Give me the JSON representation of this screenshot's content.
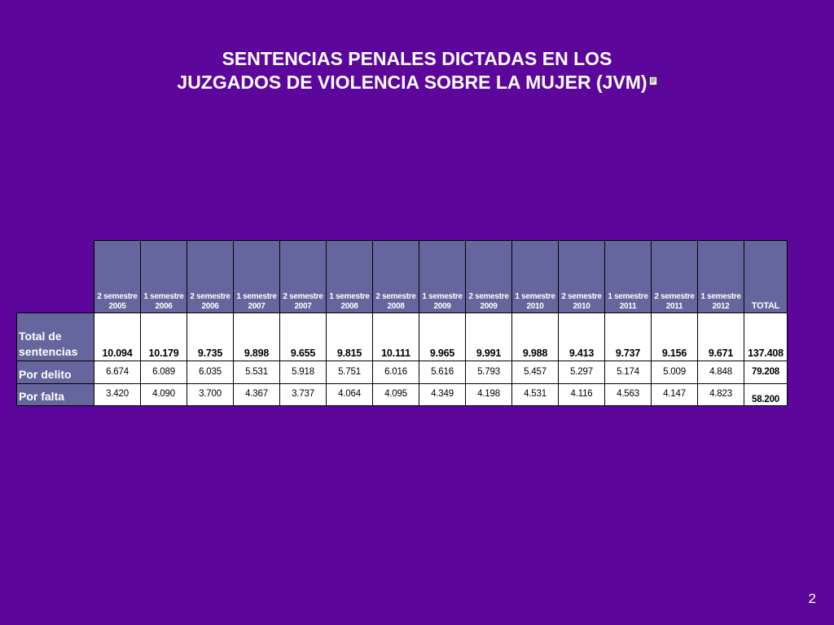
{
  "slide": {
    "title_line1": "SENTENCIAS PENALES DICTADAS EN LOS",
    "title_line2": "JUZGADOS DE VIOLENCIA SOBRE LA MUJER (JVM)",
    "page_number": "2",
    "background_color": "#5c069c",
    "header_color": "#66669e"
  },
  "chart_data": {
    "type": "table",
    "columns": [
      {
        "period": "2 semestre",
        "year": "2005"
      },
      {
        "period": "1 semestre",
        "year": "2006"
      },
      {
        "period": "2 semestre",
        "year": "2006"
      },
      {
        "period": "1 semestre",
        "year": "2007"
      },
      {
        "period": "2 semestre",
        "year": "2007"
      },
      {
        "period": "1 semestre",
        "year": "2008"
      },
      {
        "period": "2 semestre",
        "year": "2008"
      },
      {
        "period": "1 semestre",
        "year": "2009"
      },
      {
        "period": "2 semestre",
        "year": "2009"
      },
      {
        "period": "1 semestre",
        "year": "2010"
      },
      {
        "period": "2 semestre",
        "year": "2010"
      },
      {
        "period": "1 semestre",
        "year": "2011"
      },
      {
        "period": "2 semestre",
        "year": "2011"
      },
      {
        "period": "1 semestre",
        "year": "2012"
      }
    ],
    "total_header": "TOTAL",
    "rows": [
      {
        "label_line1": "Total de",
        "label_line2": "sentencias",
        "values": [
          "10.094",
          "10.179",
          "9.735",
          "9.898",
          "9.655",
          "9.815",
          "10.111",
          "9.965",
          "9.991",
          "9.988",
          "9.413",
          "9.737",
          "9.156",
          "9.671"
        ],
        "total": "137.408"
      },
      {
        "label_line1": "Por delito",
        "values": [
          "6.674",
          "6.089",
          "6.035",
          "5.531",
          "5.918",
          "5.751",
          "6.016",
          "5.616",
          "5.793",
          "5.457",
          "5.297",
          "5.174",
          "5.009",
          "4.848"
        ],
        "total": "79.208"
      },
      {
        "label_line1": "Por falta",
        "values": [
          "3.420",
          "4.090",
          "3.700",
          "4.367",
          "3.737",
          "4.064",
          "4.095",
          "4.349",
          "4.198",
          "4.531",
          "4.116",
          "4.563",
          "4.147",
          "4.823"
        ],
        "total": "58.200"
      }
    ]
  }
}
